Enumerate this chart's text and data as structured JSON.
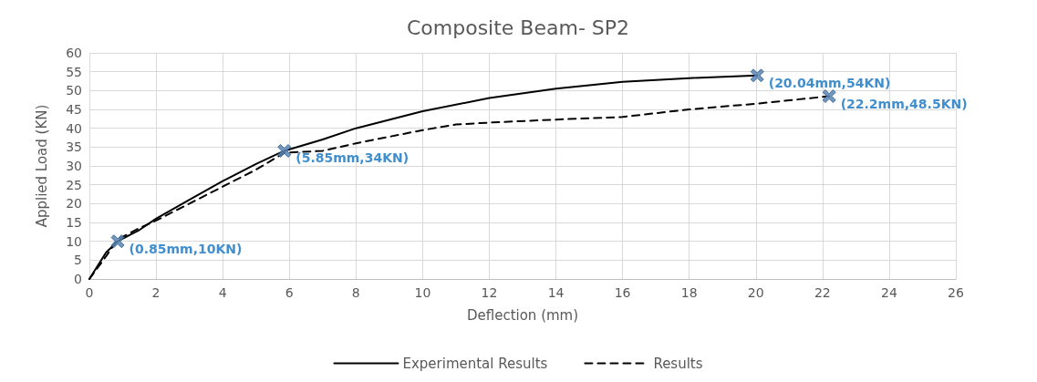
{
  "chart_data": {
    "type": "line",
    "title": "Composite Beam- SP2",
    "xlabel": "Deflection (mm)",
    "ylabel": "Applied Load (KN)",
    "xlim": [
      0,
      26
    ],
    "xticks": [
      0,
      2,
      4,
      6,
      8,
      10,
      12,
      14,
      16,
      18,
      20,
      22,
      24,
      26
    ],
    "ylim": [
      0,
      60
    ],
    "yticks": [
      0,
      5,
      10,
      15,
      20,
      25,
      30,
      35,
      40,
      45,
      50,
      55,
      60
    ],
    "grid": true,
    "legend": "bottom",
    "marker": "none",
    "series": [
      {
        "name": "Experimental Results",
        "color": "#000000",
        "line_style": "solid",
        "x": [
          0,
          0.5,
          0.85,
          1.5,
          2,
          3,
          4,
          5,
          5.85,
          7,
          8,
          10,
          12,
          14,
          16,
          18,
          20.04
        ],
        "values": [
          0,
          7,
          10,
          13,
          16,
          21,
          26,
          30.5,
          34,
          37,
          40,
          44.5,
          48,
          50.5,
          52.3,
          53.3,
          54
        ]
      },
      {
        "name": "Results",
        "color": "#000000",
        "line_style": "dashed",
        "x": [
          0,
          0.5,
          0.85,
          1.5,
          2,
          3,
          4,
          5,
          5.85,
          7,
          8,
          10,
          11,
          12,
          14,
          16,
          18,
          20,
          22.2
        ],
        "values": [
          0,
          6,
          10.5,
          13.5,
          15.5,
          20,
          24.5,
          29,
          33.5,
          34,
          36,
          39.5,
          41,
          41.5,
          42.3,
          43,
          45,
          46.5,
          48.5
        ]
      }
    ],
    "annotations": [
      {
        "text": "(0.85mm,10KN)",
        "x": 0.85,
        "y": 10
      },
      {
        "text": "(5.85mm,34KN)",
        "x": 5.85,
        "y": 34
      },
      {
        "text": "(20.04mm,54KN)",
        "x": 20.04,
        "y": 54
      },
      {
        "text": "(22.2mm,48.5KN)",
        "x": 22.2,
        "y": 48.5
      }
    ]
  }
}
